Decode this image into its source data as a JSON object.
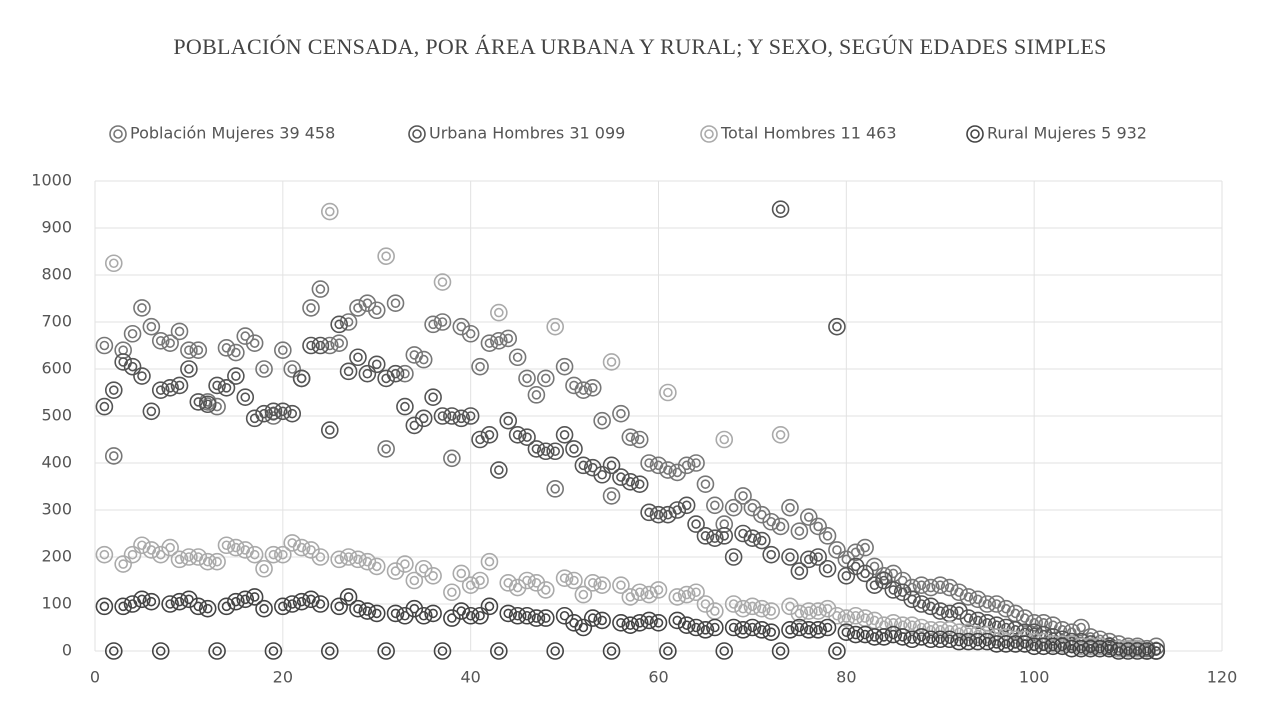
{
  "chart_data": {
    "type": "scatter",
    "title": "POBLACIÓN CENSADA, POR ÁREA URBANA Y RURAL; Y SEXO, SEGÚN EDADES SIMPLES",
    "x": [
      1,
      2,
      3,
      4,
      5,
      6,
      7,
      8,
      9,
      10,
      11,
      12,
      13,
      14,
      15,
      16,
      17,
      18,
      19,
      20,
      21,
      22,
      23,
      24,
      25,
      26,
      27,
      28,
      29,
      30,
      31,
      32,
      33,
      34,
      35,
      36,
      37,
      38,
      39,
      40,
      41,
      42,
      43,
      44,
      45,
      46,
      47,
      48,
      49,
      50,
      51,
      52,
      53,
      54,
      55,
      56,
      57,
      58,
      59,
      60,
      61,
      62,
      63,
      64,
      65,
      66,
      67,
      68,
      69,
      70,
      71,
      72,
      73,
      74,
      75,
      76,
      77,
      78,
      79,
      80,
      81,
      82,
      83,
      84,
      85,
      86,
      87,
      88,
      89,
      90,
      91,
      92,
      93,
      94,
      95,
      96,
      97,
      98,
      99,
      100,
      101,
      102,
      103,
      104,
      105,
      106,
      107,
      108,
      109,
      110,
      111,
      112,
      113
    ],
    "series": [
      {
        "name": "Población Mujeres 39 458",
        "color": "#777777",
        "values": [
          650,
          415,
          640,
          675,
          730,
          690,
          660,
          655,
          680,
          640,
          640,
          530,
          520,
          645,
          635,
          670,
          655,
          600,
          500,
          640,
          600,
          580,
          730,
          770,
          650,
          655,
          700,
          730,
          740,
          725,
          430,
          740,
          590,
          630,
          620,
          695,
          700,
          410,
          690,
          675,
          605,
          655,
          660,
          665,
          625,
          580,
          545,
          580,
          345,
          605,
          565,
          555,
          560,
          490,
          330,
          505,
          455,
          450,
          400,
          395,
          385,
          380,
          395,
          400,
          355,
          310,
          270,
          305,
          330,
          305,
          290,
          275,
          265,
          305,
          255,
          285,
          265,
          245,
          215,
          195,
          210,
          220,
          180,
          160,
          165,
          150,
          135,
          140,
          135,
          140,
          135,
          125,
          115,
          110,
          100,
          100,
          90,
          80,
          70,
          60,
          60,
          55,
          45,
          40,
          50,
          30,
          25,
          20,
          15,
          10,
          10,
          5,
          10
        ]
      },
      {
        "name": "Urbana Hombres 31 099",
        "color": "#555555",
        "values": [
          520,
          555,
          615,
          605,
          585,
          510,
          555,
          560,
          565,
          600,
          530,
          525,
          565,
          560,
          585,
          540,
          495,
          505,
          510,
          510,
          505,
          580,
          650,
          650,
          470,
          695,
          595,
          625,
          590,
          610,
          580,
          590,
          520,
          480,
          495,
          540,
          500,
          500,
          495,
          500,
          450,
          460,
          385,
          490,
          460,
          455,
          430,
          425,
          425,
          460,
          430,
          395,
          390,
          375,
          395,
          370,
          360,
          355,
          295,
          290,
          290,
          300,
          310,
          270,
          245,
          240,
          245,
          200,
          250,
          240,
          235,
          205,
          940,
          200,
          170,
          195,
          200,
          175,
          690,
          160,
          180,
          165,
          140,
          150,
          130,
          125,
          110,
          100,
          95,
          85,
          80,
          85,
          70,
          65,
          60,
          55,
          50,
          45,
          40,
          40,
          35,
          30,
          25,
          20,
          20,
          15,
          10,
          10,
          5,
          5,
          5,
          0,
          0
        ]
      },
      {
        "name": "Total Hombres 11 463",
        "color": "#aaaaaa",
        "values": [
          205,
          825,
          185,
          205,
          225,
          215,
          205,
          220,
          195,
          200,
          200,
          190,
          190,
          225,
          220,
          215,
          205,
          175,
          205,
          205,
          230,
          220,
          215,
          200,
          935,
          195,
          200,
          195,
          190,
          180,
          840,
          170,
          185,
          150,
          175,
          160,
          785,
          125,
          165,
          140,
          150,
          190,
          720,
          145,
          135,
          150,
          145,
          130,
          690,
          155,
          150,
          120,
          145,
          140,
          615,
          140,
          115,
          125,
          120,
          130,
          550,
          115,
          120,
          125,
          100,
          85,
          450,
          100,
          90,
          95,
          90,
          85,
          460,
          95,
          80,
          85,
          85,
          90,
          75,
          70,
          75,
          70,
          65,
          55,
          60,
          55,
          55,
          50,
          45,
          45,
          45,
          40,
          40,
          35,
          35,
          30,
          30,
          25,
          25,
          20,
          20,
          15,
          15,
          15,
          10,
          10,
          10,
          5,
          5,
          5,
          5,
          0,
          0
        ]
      },
      {
        "name": "Rural Mujeres 5 932",
        "color": "#444444",
        "values": [
          95,
          0,
          95,
          100,
          110,
          105,
          0,
          100,
          105,
          110,
          95,
          90,
          0,
          95,
          105,
          110,
          115,
          90,
          0,
          95,
          100,
          105,
          110,
          100,
          0,
          95,
          115,
          90,
          85,
          80,
          0,
          80,
          75,
          90,
          75,
          80,
          0,
          70,
          85,
          75,
          75,
          95,
          0,
          80,
          75,
          75,
          70,
          70,
          0,
          75,
          60,
          50,
          70,
          65,
          0,
          60,
          55,
          60,
          65,
          60,
          0,
          65,
          55,
          50,
          45,
          50,
          0,
          50,
          45,
          50,
          45,
          40,
          0,
          45,
          50,
          45,
          45,
          50,
          0,
          40,
          35,
          35,
          30,
          30,
          35,
          30,
          25,
          30,
          25,
          25,
          25,
          20,
          20,
          20,
          20,
          15,
          15,
          15,
          15,
          10,
          10,
          10,
          10,
          5,
          5,
          5,
          5,
          5,
          0,
          0,
          0,
          0,
          0
        ]
      }
    ],
    "xlim": [
      0,
      120
    ],
    "xticks": [
      0,
      20,
      40,
      60,
      80,
      100,
      120
    ],
    "ylim": [
      0,
      1000
    ],
    "yticks": [
      0,
      100,
      200,
      300,
      400,
      500,
      600,
      700,
      800,
      900,
      1000
    ],
    "grid": true,
    "legend": "top"
  }
}
